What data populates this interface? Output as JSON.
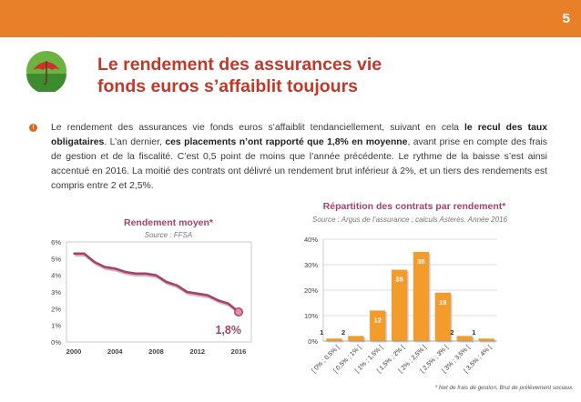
{
  "page_number": "5",
  "title_line1": "Le rendement des assurances vie",
  "title_line2": "fonds euros s’affaiblit toujours",
  "paragraph": {
    "p1": "Le rendement des assurances vie fonds euros s’affaiblit tendanciellement, suivant en cela ",
    "b1": "le recul des taux obligataires",
    "p2": ". L’an dernier, ",
    "b2": "ces placements n’ont rapporté que 1,8% en moyenne",
    "p3": ", avant prise en compte des frais de gestion et de la fiscalité. C’est 0,5 point de moins que l’année précédente. Le rythme de la baisse s’est ainsi accentué en 2016. La moitié des contrats ont délivré un rendement brut inférieur à 2%, et un tiers des rendements est compris entre 2 et 2,5%."
  },
  "footnote": "* Net de frais de gestion. Brut de prélèvement sociaux.",
  "chart_data": [
    {
      "type": "line",
      "title": "Rendement moyen*",
      "subtitle": "Source : FFSA",
      "x": [
        2000,
        2001,
        2002,
        2003,
        2004,
        2005,
        2006,
        2007,
        2008,
        2009,
        2010,
        2011,
        2012,
        2013,
        2014,
        2015,
        2016
      ],
      "values": [
        5.3,
        5.3,
        4.8,
        4.5,
        4.4,
        4.2,
        4.1,
        4.1,
        4.0,
        3.6,
        3.4,
        3.0,
        2.9,
        2.8,
        2.5,
        2.3,
        1.8
      ],
      "xticks": [
        "2000",
        "2004",
        "2008",
        "2012",
        "2016"
      ],
      "ytick_labels": [
        "0%",
        "1%",
        "2%",
        "3%",
        "4%",
        "5%",
        "6%"
      ],
      "ylim": [
        0,
        6
      ],
      "annotation": "1,8%",
      "color": "#a2446a",
      "grid": false
    },
    {
      "type": "bar",
      "title": "Répartition des contrats par rendement*",
      "subtitle": "Source : Argus de l’assurance ; calculs Asterès. Année 2016",
      "categories": [
        "[ 0% ; 0,5% [",
        "[ 0,5% ; 1% [",
        "[ 1% ; 1,5% [",
        "[ 1,5% ; 2% [",
        "[ 2% ; 2,5% [",
        "[ 2,5% ; 3% [",
        "[ 3% ; 3,5% [",
        "[ 3,5% ; 4% ["
      ],
      "values": [
        1,
        2,
        12,
        28,
        35,
        19,
        2,
        1
      ],
      "ytick_labels": [
        "0%",
        "10%",
        "20%",
        "30%",
        "40%"
      ],
      "ylim": [
        0,
        40
      ],
      "color": "#f39c2b",
      "grid": true
    }
  ]
}
